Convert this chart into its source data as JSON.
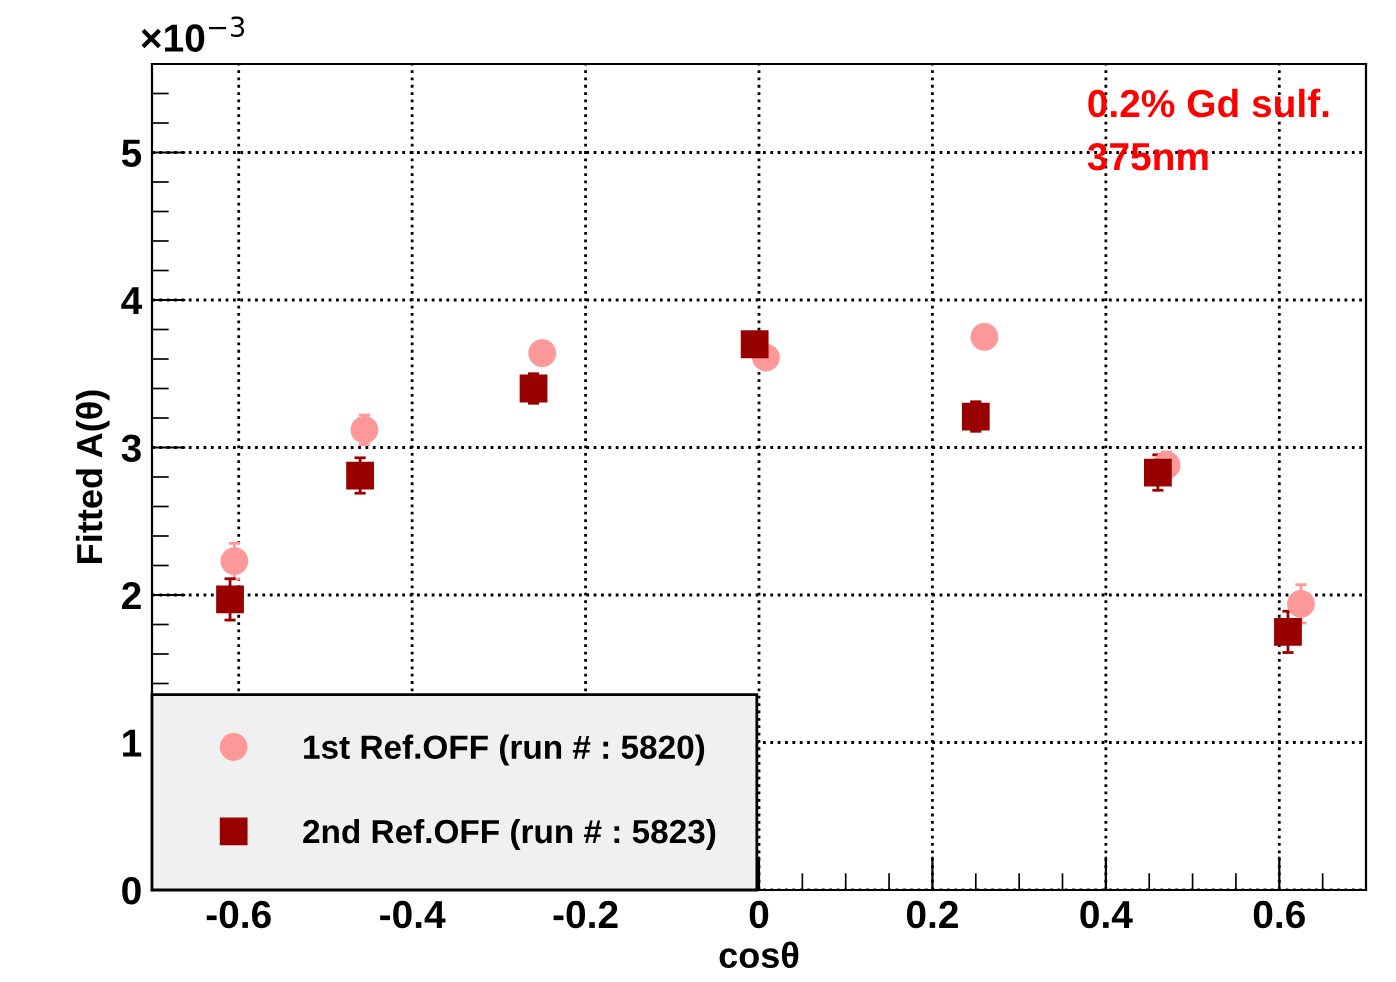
{
  "chart_data": {
    "type": "scatter",
    "xlabel": "cosθ",
    "ylabel": "Fitted A(θ)",
    "annotations": [
      "×10$^{−3}$",
      "0.2% Gd sulf.\n375nm"
    ],
    "xlim": [
      -0.7,
      0.7
    ],
    "xticks": [
      -0.6,
      -0.4,
      -0.2,
      0,
      0.2,
      0.4,
      0.6
    ],
    "ylim": [
      0,
      5.6
    ],
    "yticks": [
      0,
      1,
      2,
      3,
      4,
      5
    ],
    "grid": true,
    "legend": "bottom left",
    "series": [
      {
        "name": "1st Ref.OFF (run # : 5820)",
        "color": "#ff9999",
        "marker": "circle",
        "x": [
          -0.605,
          -0.455,
          -0.25,
          0.008,
          0.26,
          0.47,
          0.625
        ],
        "values": [
          2.23,
          3.12,
          3.64,
          3.61,
          3.75,
          2.88,
          1.94
        ],
        "errors": [
          0.12,
          0.1,
          0.08,
          0.07,
          0.08,
          0.09,
          0.13
        ]
      },
      {
        "name": "2nd Ref.OFF (run # : 5823)",
        "color": "#990000",
        "marker": "square",
        "x": [
          -0.61,
          -0.46,
          -0.26,
          -0.005,
          0.25,
          0.46,
          0.61
        ],
        "values": [
          1.97,
          2.81,
          3.4,
          3.7,
          3.21,
          2.83,
          1.75
        ],
        "errors": [
          0.14,
          0.12,
          0.1,
          0.07,
          0.1,
          0.12,
          0.14
        ]
      }
    ]
  }
}
